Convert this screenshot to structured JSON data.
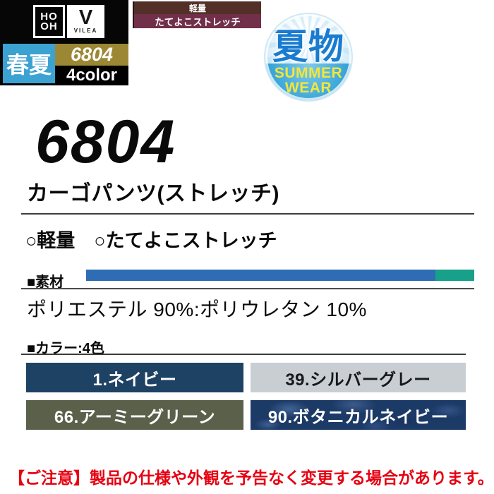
{
  "brand": {
    "hooh_line1": "HO",
    "hooh_line2": "OH",
    "vilea_mark": "V",
    "vilea_name": "VILEA",
    "season_label": "春夏",
    "product_code": "6804",
    "color_count_label": "4color"
  },
  "feature_tag": {
    "line1": "軽量",
    "line2": "たてよこストレッチ"
  },
  "summer_badge": {
    "kanji": "夏物",
    "line1": "SUMMER",
    "line2": "WEAR"
  },
  "product": {
    "code": "6804",
    "name": "カーゴパンツ(ストレッチ)",
    "features": "○軽量　○たてよこストレッチ"
  },
  "material": {
    "label": "■素材",
    "composition": "ポリエステル 90%:ポリウレタン 10%",
    "bar": {
      "segments": [
        {
          "name": "ポリエステル",
          "pct": 90,
          "color": "#2e6db4"
        },
        {
          "name": "ポリウレタン",
          "pct": 10,
          "color": "#17a18a"
        }
      ]
    }
  },
  "colors": {
    "label": "■カラー:4色",
    "swatches": [
      {
        "label": "1.ネイビー",
        "bg": "#1e4264",
        "text": "#ffffff"
      },
      {
        "label": "39.シルバーグレー",
        "bg": "#c9ced3",
        "text": "#15181c"
      },
      {
        "label": "66.アーミーグリーン",
        "bg": "#5a604a",
        "text": "#ffffff"
      },
      {
        "label": "90.ボタニカルネイビー",
        "bg": "#1c3a66",
        "text": "#ffffff"
      }
    ]
  },
  "notice": "【ご注意】製品の仕様や外観を予告なく変更する場合があります。"
}
